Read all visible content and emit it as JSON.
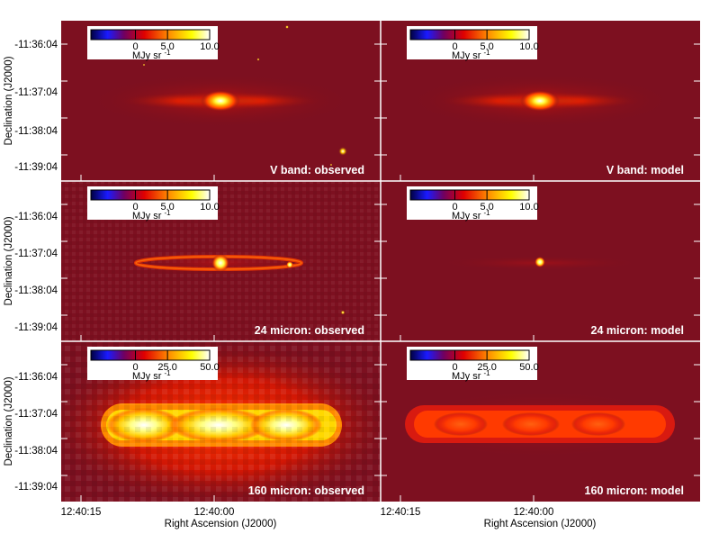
{
  "figure": {
    "ylabel": "Declination (J2000)",
    "xlabel": "Right Ascension (J2000)",
    "y_ticks": [
      "-11:36:04",
      "-11:37:04",
      "-11:38:04",
      "-11:39:04"
    ],
    "x_ticks": [
      "12:40:15",
      "12:40:00"
    ],
    "colormap": [
      "#000033",
      "#1a1aff",
      "#7a0050",
      "#e00000",
      "#ff8800",
      "#ffff00",
      "#ffffff"
    ]
  },
  "panels": [
    {
      "label": "V band: observed",
      "cb_ticks": [
        "0",
        "5.0",
        "10.0"
      ],
      "cb_unit": "MJy sr",
      "cb_unit_exp": "-1"
    },
    {
      "label": "V band: model",
      "cb_ticks": [
        "0",
        "5.0",
        "10.0"
      ],
      "cb_unit": "MJy sr",
      "cb_unit_exp": "-1"
    },
    {
      "label": "24 micron: observed",
      "cb_ticks": [
        "0",
        "5.0",
        "10.0"
      ],
      "cb_unit": "MJy sr",
      "cb_unit_exp": "-1"
    },
    {
      "label": "24 micron: model",
      "cb_ticks": [
        "0",
        "5.0",
        "10.0"
      ],
      "cb_unit": "MJy sr",
      "cb_unit_exp": "-1"
    },
    {
      "label": "160 micron: observed",
      "cb_ticks": [
        "0",
        "25.0",
        "50.0"
      ],
      "cb_unit": "MJy sr",
      "cb_unit_exp": "-1"
    },
    {
      "label": "160 micron: model",
      "cb_ticks": [
        "0",
        "25.0",
        "50.0"
      ],
      "cb_unit": "MJy sr",
      "cb_unit_exp": "-1"
    }
  ]
}
